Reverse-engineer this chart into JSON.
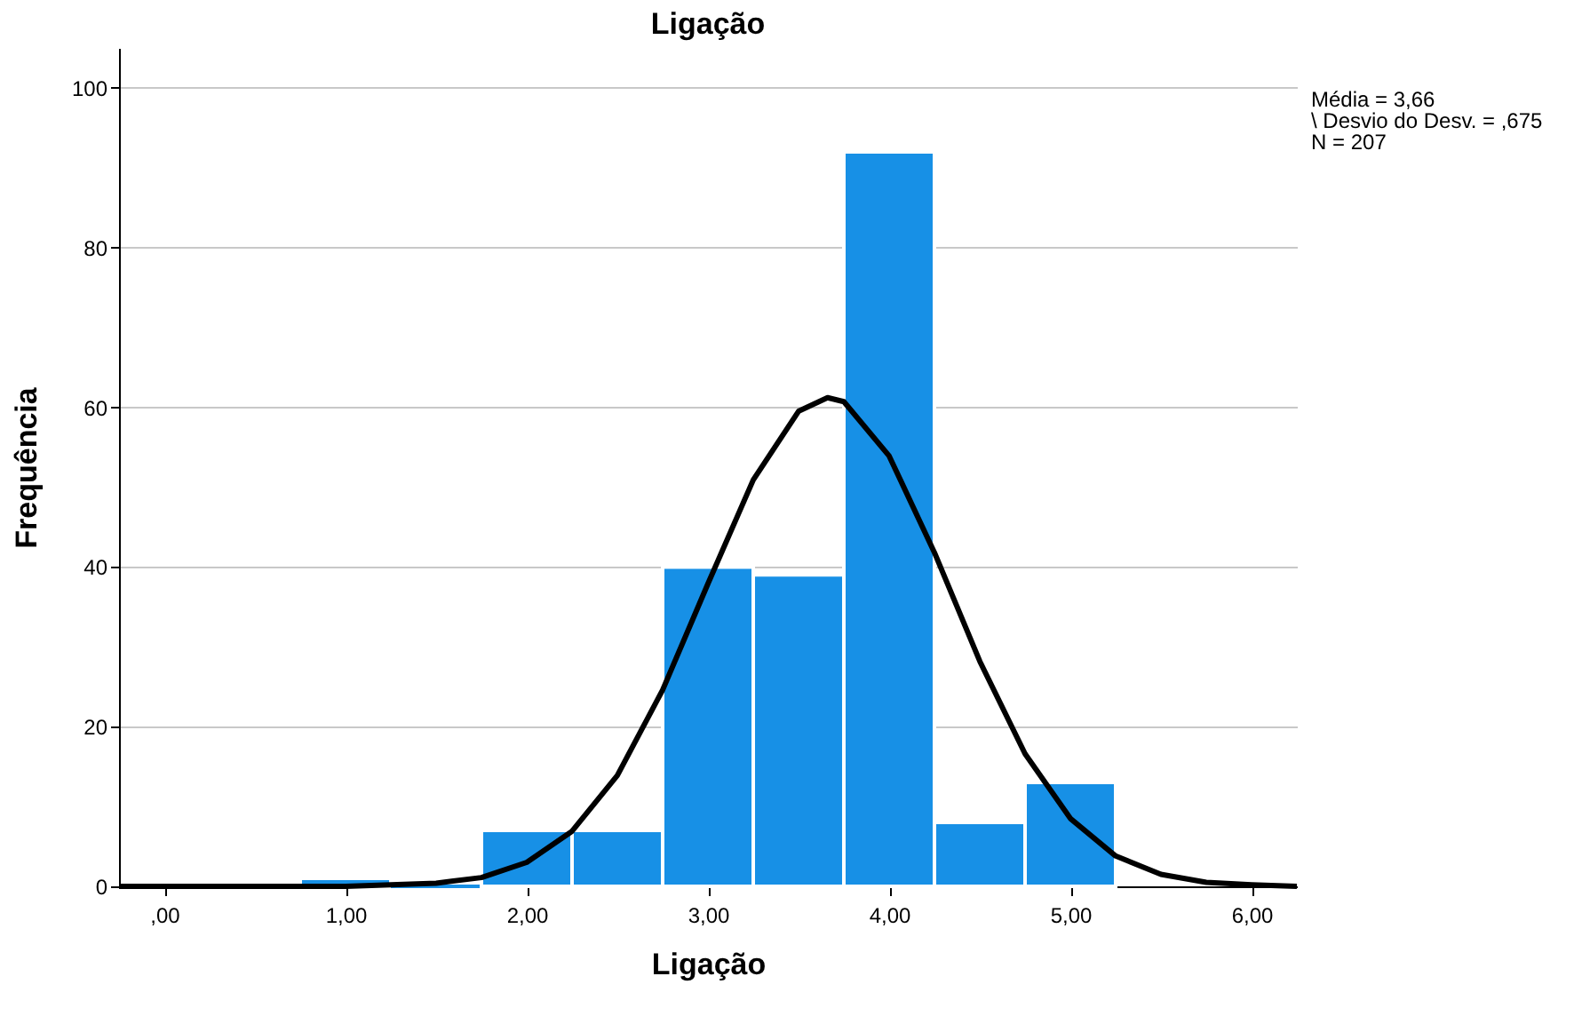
{
  "chart_data": {
    "type": "histogram",
    "title": "Ligação",
    "xlabel": "Ligação",
    "ylabel": "Frequência",
    "bins": [
      0.75,
      1.25,
      1.75,
      2.25,
      2.75,
      3.25,
      3.75,
      4.25,
      4.75,
      5.25
    ],
    "values": [
      1,
      0,
      7,
      7,
      40,
      39,
      92,
      8,
      13
    ],
    "color": "#1790e6",
    "series": [
      {
        "type": "line",
        "color": "#000000",
        "x": [
          -0.25,
          0,
          0.5,
          1.0,
          1.5,
          1.75,
          2.0,
          2.25,
          2.5,
          2.75,
          3.0,
          3.25,
          3.5,
          3.66,
          3.75,
          4.0,
          4.25,
          4.5,
          4.75,
          5.0,
          5.25,
          5.5,
          5.75,
          6.0,
          6.25
        ],
        "values": [
          0,
          0,
          0,
          0,
          0.4,
          1.1,
          3,
          6.9,
          13.9,
          24.6,
          37.9,
          50.9,
          59.5,
          61.2,
          60.7,
          53.9,
          41.8,
          28.2,
          16.6,
          8.5,
          3.8,
          1.5,
          0.5,
          0.2,
          0
        ]
      }
    ],
    "xlim": [
      -0.25,
      6.25
    ],
    "xticks": [
      {
        "value": 0,
        "label": ",00"
      },
      {
        "value": 1,
        "label": "1,00"
      },
      {
        "value": 2,
        "label": "2,00"
      },
      {
        "value": 3,
        "label": "3,00"
      },
      {
        "value": 4,
        "label": "4,00"
      },
      {
        "value": 5,
        "label": "5,00"
      },
      {
        "value": 6,
        "label": "6,00"
      }
    ],
    "ylim": [
      0,
      105
    ],
    "yticks": [
      0,
      20,
      40,
      60,
      80,
      100
    ],
    "grid": "y",
    "annotations": [
      "Média = 3,66",
      "\\ Desvio do Desv. = ,675",
      "N = 207"
    ]
  }
}
